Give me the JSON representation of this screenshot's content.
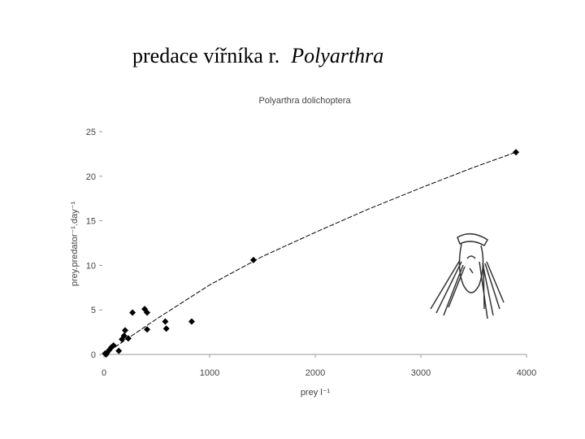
{
  "slide_title": {
    "text": "predace  vířníka r.",
    "taxon": "Polyarthra"
  },
  "chart_data": {
    "type": "scatter",
    "title": "Polyarthra dolichoptera",
    "x_label": "prey l⁻¹",
    "y_label": "prey.predator⁻¹.day⁻¹",
    "xlim": [
      0,
      4000
    ],
    "ylim": [
      0,
      25
    ],
    "xticks": [
      0,
      1000,
      2000,
      3000,
      4000
    ],
    "yticks": [
      0,
      5,
      10,
      15,
      20,
      25
    ],
    "series": [
      {
        "color": "#000000",
        "x": [
          3900,
          1415,
          830,
          580,
          590,
          408,
          385,
          408,
          270,
          200,
          190,
          170,
          230,
          140,
          90,
          70,
          50,
          30,
          10,
          20
        ],
        "y": [
          22.7,
          10.6,
          3.7,
          3.7,
          2.9,
          2.8,
          5.1,
          4.7,
          4.7,
          2.7,
          2.1,
          1.7,
          1.8,
          0.4,
          1.0,
          0.8,
          0.5,
          0.2,
          0.1,
          0.0
        ]
      },
      {
        "color": "#000000",
        "line": "dashed",
        "x": [
          0,
          500,
          1000,
          1500,
          2000,
          2500,
          3000,
          3500,
          3900
        ],
        "y": [
          0,
          4,
          7.8,
          11,
          13.7,
          16.3,
          18.7,
          21,
          22.7
        ]
      }
    ]
  }
}
